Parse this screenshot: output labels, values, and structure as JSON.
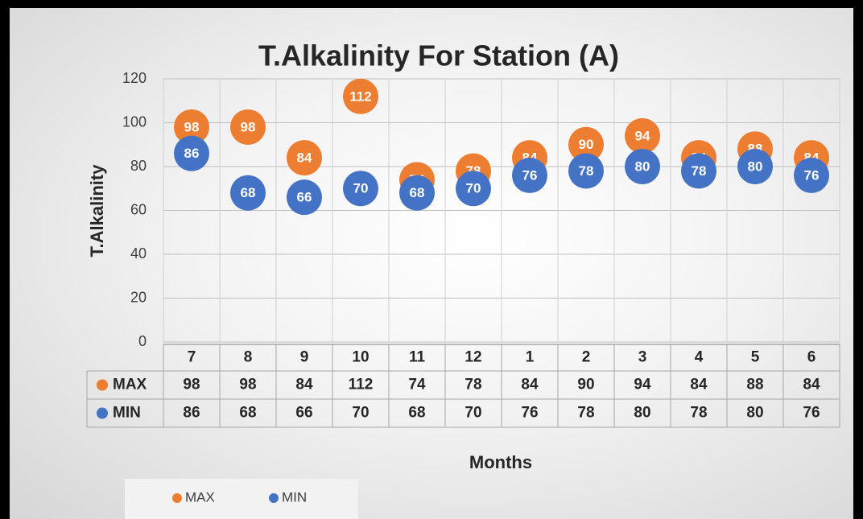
{
  "chart_data": {
    "type": "scatter",
    "title": "T.Alkalinity For Station (A)",
    "x_label": "Months",
    "y_label": "T.Alkalinity",
    "categories": [
      "7",
      "8",
      "9",
      "10",
      "11",
      "12",
      "1",
      "2",
      "3",
      "4",
      "5",
      "6"
    ],
    "series": [
      {
        "name": "MAX",
        "color": "#ed7d31",
        "values": [
          98,
          98,
          84,
          112,
          74,
          78,
          84,
          90,
          94,
          84,
          88,
          84
        ]
      },
      {
        "name": "MIN",
        "color": "#4472c4",
        "values": [
          86,
          68,
          66,
          70,
          68,
          70,
          76,
          78,
          80,
          78,
          80,
          76
        ]
      }
    ],
    "ylim": [
      0,
      120
    ],
    "yticks": [
      0,
      20,
      40,
      60,
      80,
      100,
      120
    ],
    "grid": true,
    "data_table": true,
    "legend": "bottom"
  }
}
